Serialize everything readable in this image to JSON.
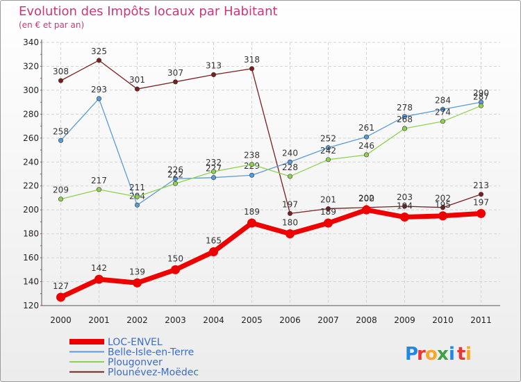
{
  "chart_data": {
    "type": "line",
    "title": "Evolution des Impôts locaux par Habitant",
    "subtitle": "(en € et par an)",
    "x": [
      "2000",
      "2001",
      "2002",
      "2003",
      "2004",
      "2005",
      "2006",
      "2007",
      "2008",
      "2009",
      "2010",
      "2011"
    ],
    "ylim": [
      120,
      340
    ],
    "yticks": [
      120,
      140,
      160,
      180,
      200,
      220,
      240,
      260,
      280,
      300,
      320,
      340
    ],
    "grid": true,
    "legend_position": "bottom-left",
    "series": [
      {
        "name": "LOC-ENVEL",
        "color": "#ee0000",
        "values": [
          127,
          142,
          139,
          150,
          165,
          189,
          180,
          189,
          200,
          194,
          195,
          197
        ]
      },
      {
        "name": "Belle-Isle-en-Terre",
        "color": "#5b9bd5",
        "values": [
          258,
          293,
          204,
          226,
          227,
          229,
          240,
          252,
          261,
          278,
          284,
          290
        ]
      },
      {
        "name": "Plougonver",
        "color": "#8fd14f",
        "values": [
          209,
          217,
          211,
          222,
          232,
          238,
          228,
          242,
          246,
          268,
          274,
          287
        ]
      },
      {
        "name": "Plounévez-Moëdec",
        "color": "#7a1f1f",
        "values": [
          308,
          325,
          301,
          307,
          313,
          318,
          197,
          201,
          202,
          203,
          202,
          213
        ]
      }
    ]
  },
  "logo": {
    "text": "Proxiti",
    "letters": [
      "P",
      "r",
      "o",
      "x",
      "i",
      "t",
      "i"
    ],
    "colors": [
      "#1e88e5",
      "#e53935",
      "#f9a825",
      "#43a047",
      "#1e88e5",
      "#e53935",
      "#f9a825"
    ]
  }
}
